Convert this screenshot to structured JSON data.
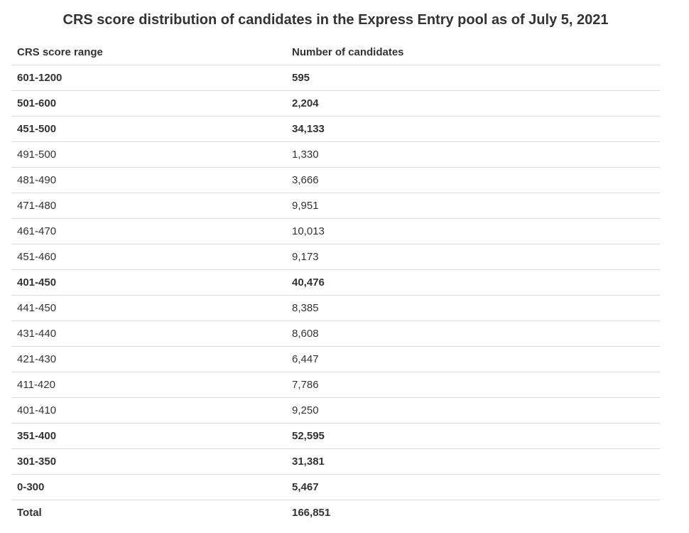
{
  "title": "CRS score distribution of candidates in the Express Entry pool as of July 5, 2021",
  "table": {
    "headers": [
      "CRS score range",
      "Number of candidates"
    ],
    "rows": [
      {
        "range": "601-1200",
        "count": "595",
        "bold": true
      },
      {
        "range": "501-600",
        "count": "2,204",
        "bold": true
      },
      {
        "range": "451-500",
        "count": "34,133",
        "bold": true
      },
      {
        "range": "491-500",
        "count": "1,330",
        "bold": false
      },
      {
        "range": "481-490",
        "count": "3,666",
        "bold": false
      },
      {
        "range": "471-480",
        "count": "9,951",
        "bold": false
      },
      {
        "range": "461-470",
        "count": "10,013",
        "bold": false
      },
      {
        "range": "451-460",
        "count": "9,173",
        "bold": false
      },
      {
        "range": "401-450",
        "count": "40,476",
        "bold": true
      },
      {
        "range": "441-450",
        "count": "8,385",
        "bold": false
      },
      {
        "range": "431-440",
        "count": "8,608",
        "bold": false
      },
      {
        "range": "421-430",
        "count": "6,447",
        "bold": false
      },
      {
        "range": "411-420",
        "count": "7,786",
        "bold": false
      },
      {
        "range": "401-410",
        "count": "9,250",
        "bold": false
      },
      {
        "range": "351-400",
        "count": "52,595",
        "bold": true
      },
      {
        "range": "301-350",
        "count": "31,381",
        "bold": true
      },
      {
        "range": "0-300",
        "count": "5,467",
        "bold": true
      },
      {
        "range": "Total",
        "count": "166,851",
        "bold": true
      }
    ]
  }
}
